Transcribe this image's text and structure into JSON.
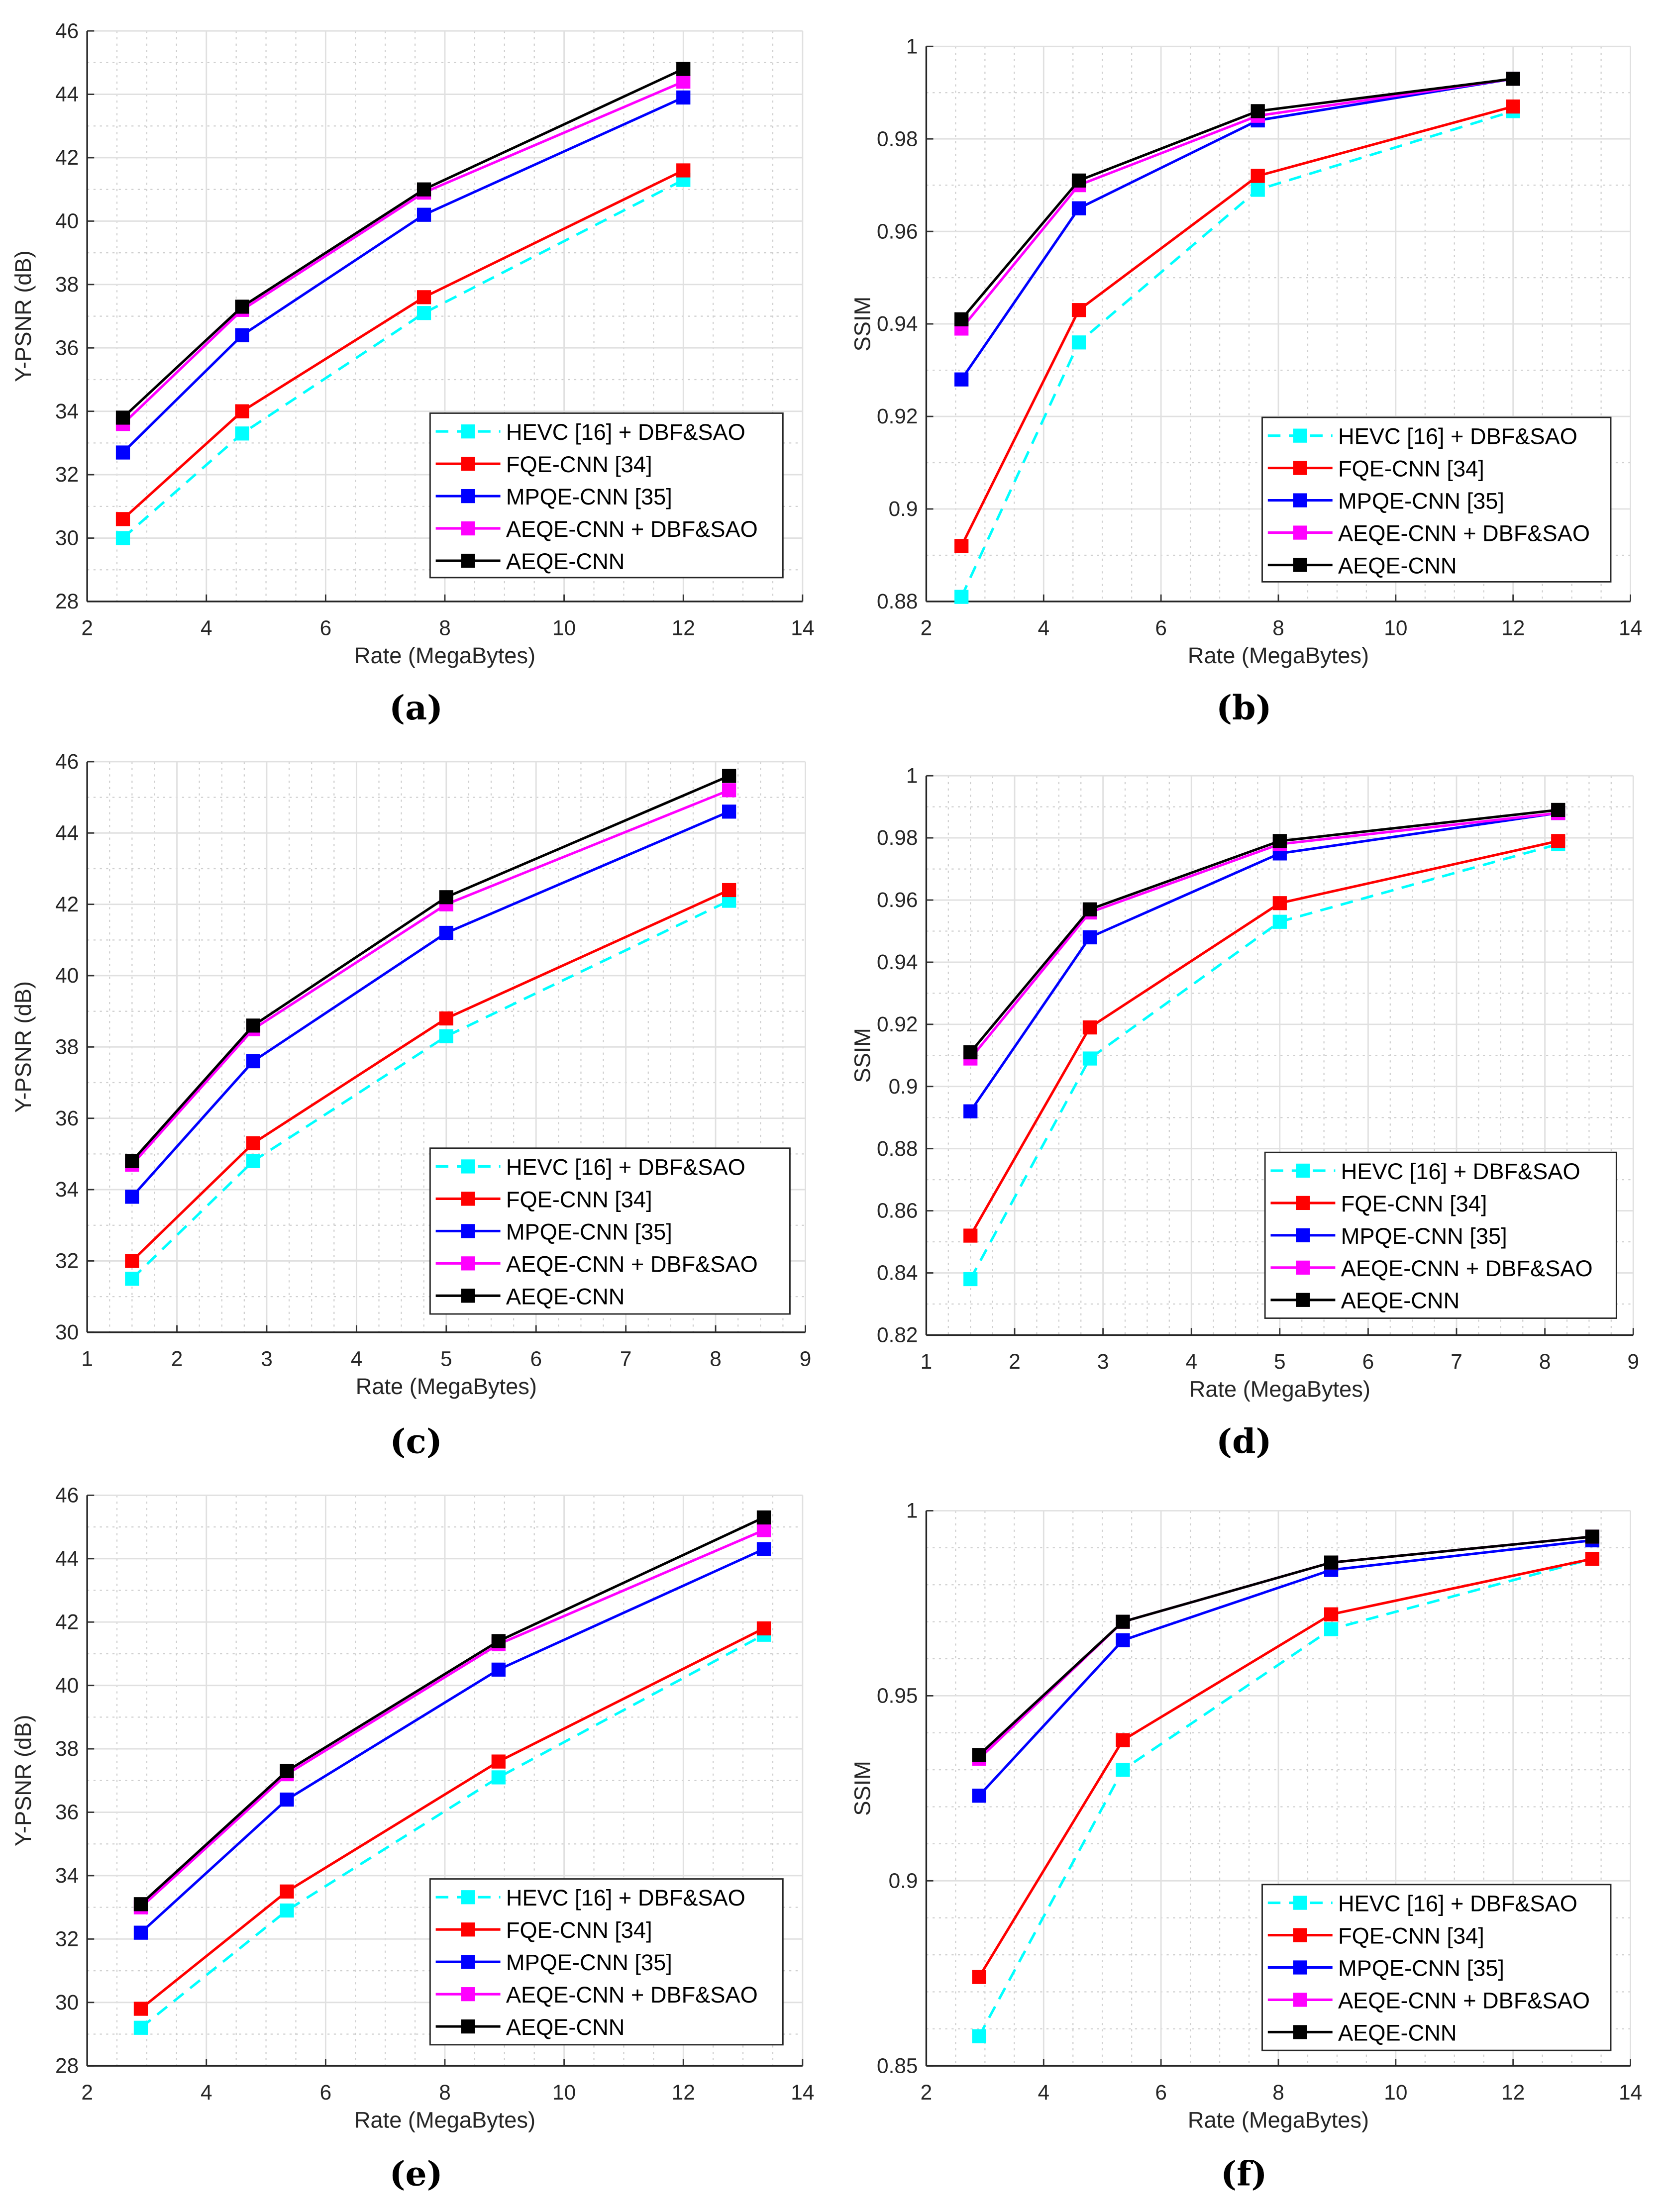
{
  "colors": {
    "HEVC": "#00ffff",
    "FQE": "#ff0000",
    "MPQE": "#0000ff",
    "AEQE_DBF": "#ff00ff",
    "AEQE": "#000000"
  },
  "chart_data": [
    {
      "type": "line",
      "caption": "(a)",
      "xlabel": "Rate (MegaBytes)",
      "ylabel": "Y-PSNR (dB)",
      "xlim": [
        2,
        14
      ],
      "ylim": [
        28,
        46
      ],
      "xticks": [
        2,
        4,
        6,
        8,
        10,
        12,
        14
      ],
      "yticks": [
        28,
        30,
        32,
        34,
        36,
        38,
        40,
        42,
        44,
        46
      ],
      "grid": true,
      "legend": "bottom-right",
      "x": [
        2.6,
        4.6,
        7.65,
        12.0
      ],
      "series": [
        {
          "name": "HEVC [16] + DBF&SAO",
          "key": "HEVC",
          "dashed": true,
          "values": [
            30.0,
            33.3,
            37.1,
            41.3
          ]
        },
        {
          "name": "FQE-CNN [34]",
          "key": "FQE",
          "values": [
            30.6,
            34.0,
            37.6,
            41.6
          ]
        },
        {
          "name": "MPQE-CNN [35]",
          "key": "MPQE",
          "values": [
            32.7,
            36.4,
            40.2,
            43.9
          ]
        },
        {
          "name": "AEQE-CNN + DBF&SAO",
          "key": "AEQE_DBF",
          "values": [
            33.6,
            37.2,
            40.9,
            44.4
          ]
        },
        {
          "name": "AEQE-CNN",
          "key": "AEQE",
          "values": [
            33.8,
            37.3,
            41.0,
            44.8
          ]
        }
      ]
    },
    {
      "type": "line",
      "caption": "(b)",
      "xlabel": "Rate (MegaBytes)",
      "ylabel": "SSIM",
      "xlim": [
        2,
        14
      ],
      "ylim": [
        0.88,
        1
      ],
      "xticks": [
        2,
        4,
        6,
        8,
        10,
        12,
        14
      ],
      "yticks": [
        0.88,
        0.9,
        0.92,
        0.94,
        0.96,
        0.98,
        1
      ],
      "grid": true,
      "legend": "bottom-right",
      "x": [
        2.6,
        4.6,
        7.65,
        12.0
      ],
      "series": [
        {
          "name": "HEVC [16] + DBF&SAO",
          "key": "HEVC",
          "dashed": true,
          "values": [
            0.881,
            0.936,
            0.969,
            0.986
          ]
        },
        {
          "name": "FQE-CNN [34]",
          "key": "FQE",
          "values": [
            0.892,
            0.943,
            0.972,
            0.987
          ]
        },
        {
          "name": "MPQE-CNN [35]",
          "key": "MPQE",
          "values": [
            0.928,
            0.965,
            0.984,
            0.993
          ]
        },
        {
          "name": "AEQE-CNN + DBF&SAO",
          "key": "AEQE_DBF",
          "values": [
            0.939,
            0.97,
            0.985,
            0.993
          ]
        },
        {
          "name": "AEQE-CNN",
          "key": "AEQE",
          "values": [
            0.941,
            0.971,
            0.986,
            0.993
          ]
        }
      ]
    },
    {
      "type": "line",
      "caption": "(c)",
      "xlabel": "Rate (MegaBytes)",
      "ylabel": "Y-PSNR (dB)",
      "xlim": [
        1,
        9
      ],
      "ylim": [
        30,
        46
      ],
      "xticks": [
        1,
        2,
        3,
        4,
        5,
        6,
        7,
        8,
        9
      ],
      "yticks": [
        30,
        32,
        34,
        36,
        38,
        40,
        42,
        44,
        46
      ],
      "grid": true,
      "legend": "bottom-right",
      "x": [
        1.5,
        2.85,
        5.0,
        8.15
      ],
      "series": [
        {
          "name": "HEVC [16] + DBF&SAO",
          "key": "HEVC",
          "dashed": true,
          "values": [
            31.5,
            34.8,
            38.3,
            42.1
          ]
        },
        {
          "name": "FQE-CNN [34]",
          "key": "FQE",
          "values": [
            32.0,
            35.3,
            38.8,
            42.4
          ]
        },
        {
          "name": "MPQE-CNN [35]",
          "key": "MPQE",
          "values": [
            33.8,
            37.6,
            41.2,
            44.6
          ]
        },
        {
          "name": "AEQE-CNN + DBF&SAO",
          "key": "AEQE_DBF",
          "values": [
            34.7,
            38.5,
            42.0,
            45.2
          ]
        },
        {
          "name": "AEQE-CNN",
          "key": "AEQE",
          "values": [
            34.8,
            38.6,
            42.2,
            45.6
          ]
        }
      ]
    },
    {
      "type": "line",
      "caption": "(d)",
      "xlabel": "Rate (MegaBytes)",
      "ylabel": "SSIM",
      "xlim": [
        1,
        9
      ],
      "ylim": [
        0.82,
        1
      ],
      "xticks": [
        1,
        2,
        3,
        4,
        5,
        6,
        7,
        8,
        9
      ],
      "yticks": [
        0.82,
        0.84,
        0.86,
        0.88,
        0.9,
        0.92,
        0.94,
        0.96,
        0.98,
        1
      ],
      "grid": true,
      "legend": "bottom-right",
      "x": [
        1.5,
        2.85,
        5.0,
        8.15
      ],
      "series": [
        {
          "name": "HEVC [16] + DBF&SAO",
          "key": "HEVC",
          "dashed": true,
          "values": [
            0.838,
            0.909,
            0.953,
            0.978
          ]
        },
        {
          "name": "FQE-CNN [34]",
          "key": "FQE",
          "values": [
            0.852,
            0.919,
            0.959,
            0.979
          ]
        },
        {
          "name": "MPQE-CNN [35]",
          "key": "MPQE",
          "values": [
            0.892,
            0.948,
            0.975,
            0.988
          ]
        },
        {
          "name": "AEQE-CNN + DBF&SAO",
          "key": "AEQE_DBF",
          "values": [
            0.909,
            0.956,
            0.978,
            0.988
          ]
        },
        {
          "name": "AEQE-CNN",
          "key": "AEQE",
          "values": [
            0.911,
            0.957,
            0.979,
            0.989
          ]
        }
      ]
    },
    {
      "type": "line",
      "caption": "(e)",
      "xlabel": "Rate (MegaBytes)",
      "ylabel": "Y-PSNR (dB)",
      "xlim": [
        2,
        14
      ],
      "ylim": [
        28,
        46
      ],
      "xticks": [
        2,
        4,
        6,
        8,
        10,
        12,
        14
      ],
      "yticks": [
        28,
        30,
        32,
        34,
        36,
        38,
        40,
        42,
        44,
        46
      ],
      "grid": true,
      "legend": "bottom-right",
      "x": [
        2.9,
        5.35,
        8.9,
        13.35
      ],
      "series": [
        {
          "name": "HEVC [16] + DBF&SAO",
          "key": "HEVC",
          "dashed": true,
          "values": [
            29.2,
            32.9,
            37.1,
            41.6
          ]
        },
        {
          "name": "FQE-CNN [34]",
          "key": "FQE",
          "values": [
            29.8,
            33.5,
            37.6,
            41.8
          ]
        },
        {
          "name": "MPQE-CNN [35]",
          "key": "MPQE",
          "values": [
            32.2,
            36.4,
            40.5,
            44.3
          ]
        },
        {
          "name": "AEQE-CNN + DBF&SAO",
          "key": "AEQE_DBF",
          "values": [
            33.0,
            37.2,
            41.3,
            44.9
          ]
        },
        {
          "name": "AEQE-CNN",
          "key": "AEQE",
          "values": [
            33.1,
            37.3,
            41.4,
            45.3
          ]
        }
      ]
    },
    {
      "type": "line",
      "caption": "(f)",
      "xlabel": "Rate (MegaBytes)",
      "ylabel": "SSIM",
      "xlim": [
        2,
        14
      ],
      "ylim": [
        0.85,
        1
      ],
      "xticks": [
        2,
        4,
        6,
        8,
        10,
        12,
        14
      ],
      "yticks": [
        0.85,
        0.9,
        0.95,
        1
      ],
      "grid": true,
      "legend": "bottom-right",
      "x": [
        2.9,
        5.35,
        8.9,
        13.35
      ],
      "series": [
        {
          "name": "HEVC [16] + DBF&SAO",
          "key": "HEVC",
          "dashed": true,
          "values": [
            0.858,
            0.93,
            0.968,
            0.987
          ]
        },
        {
          "name": "FQE-CNN [34]",
          "key": "FQE",
          "values": [
            0.874,
            0.938,
            0.972,
            0.987
          ]
        },
        {
          "name": "MPQE-CNN [35]",
          "key": "MPQE",
          "values": [
            0.923,
            0.965,
            0.984,
            0.992
          ]
        },
        {
          "name": "AEQE-CNN + DBF&SAO",
          "key": "AEQE_DBF",
          "values": [
            0.933,
            0.97,
            0.986,
            0.993
          ]
        },
        {
          "name": "AEQE-CNN",
          "key": "AEQE",
          "values": [
            0.934,
            0.97,
            0.986,
            0.993
          ]
        }
      ]
    }
  ]
}
